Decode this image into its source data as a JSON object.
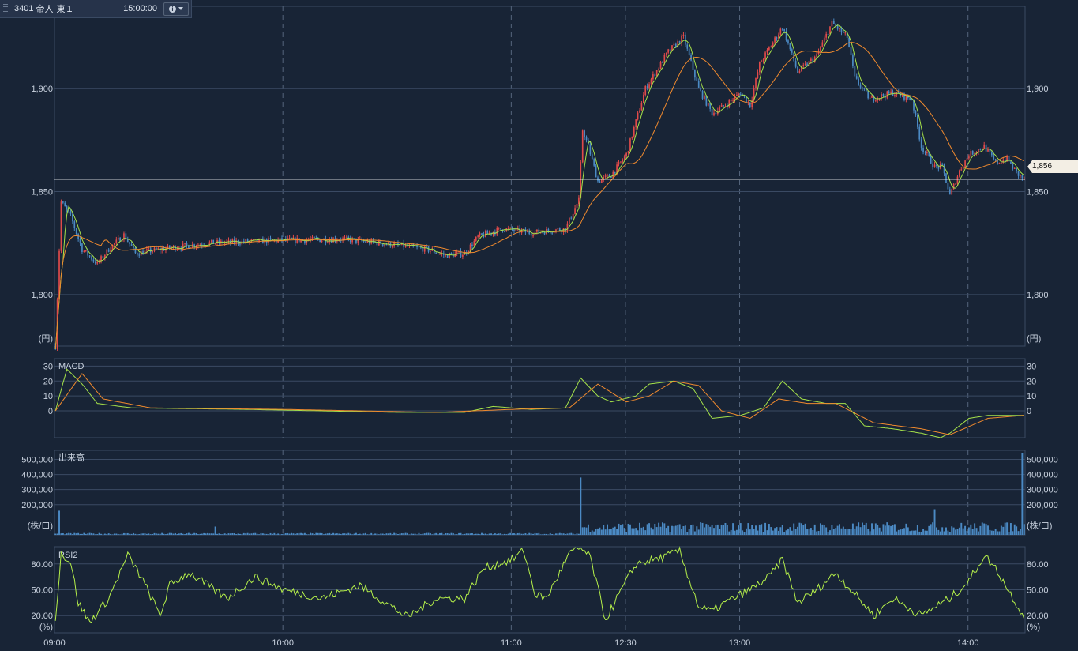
{
  "header": {
    "code": "3401",
    "name": "帝人",
    "market": "東１",
    "time": "15:00:00",
    "info_icon": "info-icon",
    "menu_icon": "caret-down-icon"
  },
  "colors": {
    "background": "#182436",
    "up_candle": "#e04a4a",
    "down_candle": "#4b8ac4",
    "ma_short": "#a6e34a",
    "ma_long": "#f08a2e",
    "macd_line": "#a6e34a",
    "signal_line": "#f08a2e",
    "volume_bar": "#4b8ac4",
    "rsi_line": "#b5f04a",
    "grid": "#3a4a63",
    "session_divider": "#55657c"
  },
  "x_axis": {
    "tick_labels": [
      "09:00",
      "10:00",
      "11:00",
      "12:30",
      "13:00",
      "14:00"
    ]
  },
  "current_price_label": "1,856",
  "chart_data": [
    {
      "type": "candlestick",
      "name": "price",
      "ylim": [
        1775,
        1940
      ],
      "yticks": [
        1800,
        1850,
        1900
      ],
      "ytick_labels": [
        "1,800",
        "1,850",
        "1,900"
      ],
      "unit_label": "(円)",
      "current_price": 1856,
      "grid": true,
      "close_path": [
        [
          0,
          1775
        ],
        [
          3,
          1845
        ],
        [
          8,
          1838
        ],
        [
          14,
          1822
        ],
        [
          22,
          1815
        ],
        [
          28,
          1822
        ],
        [
          36,
          1829
        ],
        [
          42,
          1820
        ],
        [
          55,
          1822
        ],
        [
          80,
          1825
        ],
        [
          110,
          1826
        ],
        [
          150,
          1827
        ],
        [
          180,
          1824
        ],
        [
          195,
          1822
        ],
        [
          205,
          1819
        ],
        [
          215,
          1820
        ],
        [
          222,
          1828
        ],
        [
          235,
          1832
        ],
        [
          250,
          1830
        ],
        [
          268,
          1832
        ],
        [
          275,
          1846
        ],
        [
          277,
          1880
        ],
        [
          280,
          1872
        ],
        [
          285,
          1855
        ],
        [
          292,
          1858
        ],
        [
          300,
          1868
        ],
        [
          310,
          1900
        ],
        [
          322,
          1918
        ],
        [
          330,
          1925
        ],
        [
          338,
          1900
        ],
        [
          345,
          1888
        ],
        [
          352,
          1892
        ],
        [
          360,
          1898
        ],
        [
          365,
          1892
        ],
        [
          370,
          1912
        ],
        [
          382,
          1930
        ],
        [
          390,
          1908
        ],
        [
          400,
          1916
        ],
        [
          408,
          1932
        ],
        [
          416,
          1925
        ],
        [
          420,
          1905
        ],
        [
          428,
          1895
        ],
        [
          440,
          1898
        ],
        [
          450,
          1895
        ],
        [
          455,
          1872
        ],
        [
          462,
          1862
        ],
        [
          466,
          1862
        ],
        [
          470,
          1848
        ],
        [
          475,
          1860
        ],
        [
          480,
          1868
        ],
        [
          488,
          1872
        ],
        [
          494,
          1864
        ],
        [
          500,
          1866
        ],
        [
          505,
          1859
        ],
        [
          509,
          1856
        ]
      ]
    },
    {
      "type": "line",
      "name": "MACD",
      "title": "MACD",
      "ylim": [
        -18,
        35
      ],
      "yticks": [
        0,
        10,
        20,
        30
      ],
      "ytick_labels": [
        "0",
        "10",
        "20",
        "30"
      ],
      "grid": true,
      "macd_path": [
        [
          0,
          0
        ],
        [
          6,
          28
        ],
        [
          14,
          18
        ],
        [
          22,
          5
        ],
        [
          40,
          2
        ],
        [
          100,
          1
        ],
        [
          180,
          -1
        ],
        [
          215,
          -1
        ],
        [
          230,
          3
        ],
        [
          250,
          1
        ],
        [
          268,
          2
        ],
        [
          276,
          22
        ],
        [
          285,
          10
        ],
        [
          292,
          6
        ],
        [
          305,
          10
        ],
        [
          312,
          18
        ],
        [
          325,
          20
        ],
        [
          335,
          15
        ],
        [
          345,
          -5
        ],
        [
          360,
          -3
        ],
        [
          372,
          2
        ],
        [
          382,
          20
        ],
        [
          392,
          8
        ],
        [
          405,
          5
        ],
        [
          415,
          5
        ],
        [
          425,
          -10
        ],
        [
          440,
          -12
        ],
        [
          455,
          -15
        ],
        [
          465,
          -18
        ],
        [
          470,
          -15
        ],
        [
          480,
          -5
        ],
        [
          490,
          -3
        ],
        [
          509,
          -3
        ]
      ],
      "signal_path": [
        [
          0,
          0
        ],
        [
          14,
          25
        ],
        [
          25,
          8
        ],
        [
          50,
          2
        ],
        [
          120,
          1
        ],
        [
          200,
          -1
        ],
        [
          240,
          1
        ],
        [
          270,
          2
        ],
        [
          285,
          18
        ],
        [
          300,
          6
        ],
        [
          312,
          10
        ],
        [
          325,
          20
        ],
        [
          338,
          17
        ],
        [
          350,
          0
        ],
        [
          365,
          -5
        ],
        [
          380,
          8
        ],
        [
          395,
          5
        ],
        [
          410,
          5
        ],
        [
          430,
          -8
        ],
        [
          455,
          -12
        ],
        [
          470,
          -16
        ],
        [
          490,
          -5
        ],
        [
          509,
          -3
        ]
      ]
    },
    {
      "type": "bar",
      "name": "volume",
      "title": "出来高",
      "ylim": [
        0,
        560000
      ],
      "yticks": [
        200000,
        300000,
        400000,
        500000
      ],
      "ytick_labels": [
        "200,000",
        "300,000",
        "400,000",
        "500,000"
      ],
      "unit_label": "(株/口)",
      "grid": true,
      "notable_values": [
        {
          "bar": 2,
          "value": 160000
        },
        {
          "bar": 84,
          "value": 55000
        },
        {
          "bar": 276,
          "value": 380000
        },
        {
          "bar": 462,
          "value": 170000
        },
        {
          "bar": 508,
          "value": 540000
        }
      ],
      "morning_level": 9000,
      "afternoon_level": 60000
    },
    {
      "type": "line",
      "name": "RSI",
      "title": "RSI2",
      "ylim": [
        0,
        100
      ],
      "yticks": [
        20,
        50,
        80
      ],
      "ytick_labels": [
        "20.00",
        "50.00",
        "80.00"
      ],
      "unit_label": "(%)",
      "grid": true,
      "rsi_path": [
        [
          0,
          18
        ],
        [
          3,
          92
        ],
        [
          8,
          82
        ],
        [
          12,
          35
        ],
        [
          18,
          12
        ],
        [
          28,
          40
        ],
        [
          38,
          90
        ],
        [
          45,
          65
        ],
        [
          55,
          20
        ],
        [
          60,
          55
        ],
        [
          70,
          70
        ],
        [
          90,
          40
        ],
        [
          105,
          65
        ],
        [
          120,
          50
        ],
        [
          140,
          40
        ],
        [
          160,
          55
        ],
        [
          185,
          18
        ],
        [
          200,
          40
        ],
        [
          215,
          40
        ],
        [
          225,
          75
        ],
        [
          240,
          85
        ],
        [
          246,
          96
        ],
        [
          252,
          45
        ],
        [
          258,
          40
        ],
        [
          265,
          70
        ],
        [
          270,
          92
        ],
        [
          276,
          98
        ],
        [
          281,
          88
        ],
        [
          289,
          15
        ],
        [
          295,
          40
        ],
        [
          305,
          80
        ],
        [
          320,
          88
        ],
        [
          328,
          95
        ],
        [
          338,
          30
        ],
        [
          345,
          25
        ],
        [
          352,
          35
        ],
        [
          365,
          50
        ],
        [
          375,
          65
        ],
        [
          382,
          85
        ],
        [
          390,
          35
        ],
        [
          400,
          50
        ],
        [
          410,
          70
        ],
        [
          420,
          45
        ],
        [
          430,
          20
        ],
        [
          440,
          40
        ],
        [
          455,
          20
        ],
        [
          462,
          30
        ],
        [
          470,
          40
        ],
        [
          480,
          60
        ],
        [
          488,
          90
        ],
        [
          494,
          75
        ],
        [
          502,
          45
        ],
        [
          509,
          18
        ]
      ]
    }
  ]
}
